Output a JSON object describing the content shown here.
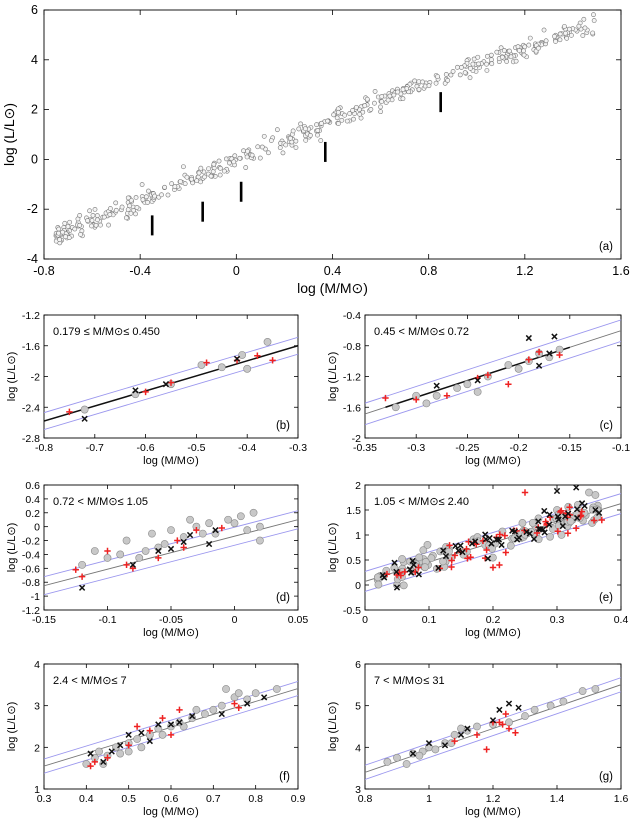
{
  "chart_data": [
    {
      "id": "a",
      "type": "scatter",
      "panel_label": "(a)",
      "xlabel": "log (M/M⊙)",
      "ylabel": "log (L/L⊙)",
      "xlim": [
        -0.8,
        1.6
      ],
      "ylim": [
        -4,
        6
      ],
      "xticks": [
        -0.8,
        -0.4,
        0,
        0.4,
        0.8,
        1.2,
        1.6
      ],
      "xtick_labels": [
        "-0.8",
        "-0.4",
        "0",
        "0.4",
        "0.8",
        "1.2",
        "1.6"
      ],
      "yticks": [
        -4,
        -2,
        0,
        2,
        4,
        6
      ],
      "ytick_labels": [
        "-4",
        "-2",
        "0",
        "2",
        "4",
        "6"
      ],
      "trend": {
        "slope": 4.0,
        "intercept": -0.05,
        "xmin": -0.75,
        "xmax": 1.5,
        "scatter": 0.35
      },
      "boundaries": [
        {
          "x": -0.35,
          "y": -2.65
        },
        {
          "x": -0.14,
          "y": -2.1
        },
        {
          "x": 0.02,
          "y": -1.3
        },
        {
          "x": 0.37,
          "y": 0.3
        },
        {
          "x": 0.85,
          "y": 2.3
        }
      ]
    },
    {
      "id": "b",
      "type": "scatter",
      "panel_label": "(b)",
      "range_text": "0.179 ≤  M/M⊙≤ 0.450",
      "xlabel": "log (M/M⊙)",
      "ylabel": "log (L/L⊙)",
      "xlim": [
        -0.8,
        -0.3
      ],
      "ylim": [
        -2.8,
        -1.2
      ],
      "xticks": [
        -0.8,
        -0.7,
        -0.6,
        -0.5,
        -0.4,
        -0.3
      ],
      "xtick_labels": [
        "-0.8",
        "-0.7",
        "-0.6",
        "-0.5",
        "-0.4",
        "-0.3"
      ],
      "yticks": [
        -2.8,
        -2.4,
        -2,
        -1.6,
        -1.2
      ],
      "ytick_labels": [
        "-2.8",
        "-2.4",
        "-2",
        "-1.6",
        "-1.2"
      ],
      "fit": {
        "x": [
          -0.8,
          -0.3
        ],
        "y": [
          -2.58,
          -1.6
        ]
      },
      "band": 0.11,
      "points": {
        "gray": [
          [
            -0.72,
            -2.43
          ],
          [
            -0.62,
            -2.23
          ],
          [
            -0.55,
            -2.1
          ],
          [
            -0.45,
            -1.88
          ],
          [
            -0.41,
            -1.72
          ],
          [
            -0.4,
            -1.9
          ],
          [
            -0.36,
            -1.55
          ],
          [
            -0.49,
            -1.85
          ]
        ],
        "red": [
          [
            -0.75,
            -2.46
          ],
          [
            -0.6,
            -2.2
          ],
          [
            -0.55,
            -2.08
          ],
          [
            -0.48,
            -1.82
          ],
          [
            -0.42,
            -1.79
          ],
          [
            -0.38,
            -1.73
          ],
          [
            -0.35,
            -1.79
          ]
        ],
        "black": [
          [
            -0.72,
            -2.55
          ],
          [
            -0.62,
            -2.18
          ],
          [
            -0.56,
            -2.1
          ],
          [
            -0.42,
            -1.77
          ]
        ]
      }
    },
    {
      "id": "c",
      "type": "scatter",
      "panel_label": "(c)",
      "range_text": "0.45 < M/M⊙≤ 0.72",
      "xlabel": "log (M/M⊙)",
      "ylabel": "log (L/L⊙)",
      "xlim": [
        -0.35,
        -0.1
      ],
      "ylim": [
        -2,
        -0.4
      ],
      "xticks": [
        -0.35,
        -0.3,
        -0.25,
        -0.2,
        -0.15,
        -0.1
      ],
      "xtick_labels": [
        "-0.35",
        "-0.3",
        "-0.25",
        "-0.2",
        "-0.15",
        "-0.1"
      ],
      "yticks": [
        -2,
        -1.6,
        -1.2,
        -0.8,
        -0.4
      ],
      "ytick_labels": [
        "-2",
        "-1.6",
        "-1.2",
        "-0.8",
        "-0.4"
      ],
      "fit": {
        "x": [
          -0.33,
          -0.15
        ],
        "y": [
          -1.6,
          -0.82
        ]
      },
      "band": 0.14,
      "points": {
        "gray": [
          [
            -0.32,
            -1.6
          ],
          [
            -0.3,
            -1.45
          ],
          [
            -0.28,
            -1.45
          ],
          [
            -0.26,
            -1.35
          ],
          [
            -0.25,
            -1.3
          ],
          [
            -0.23,
            -1.2
          ],
          [
            -0.2,
            -1.1
          ],
          [
            -0.19,
            -1.0
          ],
          [
            -0.17,
            -0.95
          ],
          [
            -0.16,
            -0.85
          ],
          [
            -0.24,
            -1.4
          ],
          [
            -0.29,
            -1.55
          ],
          [
            -0.21,
            -1.05
          ],
          [
            -0.18,
            -0.9
          ]
        ],
        "red": [
          [
            -0.33,
            -1.48
          ],
          [
            -0.3,
            -1.5
          ],
          [
            -0.27,
            -1.45
          ],
          [
            -0.24,
            -1.22
          ],
          [
            -0.23,
            -1.18
          ],
          [
            -0.21,
            -1.3
          ],
          [
            -0.19,
            -0.98
          ],
          [
            -0.18,
            -0.88
          ],
          [
            -0.16,
            -0.92
          ]
        ],
        "black": [
          [
            -0.28,
            -1.32
          ],
          [
            -0.24,
            -1.25
          ],
          [
            -0.19,
            -0.7
          ],
          [
            -0.18,
            -1.06
          ],
          [
            -0.165,
            -0.68
          ],
          [
            -0.17,
            -0.9
          ]
        ]
      }
    },
    {
      "id": "d",
      "type": "scatter",
      "panel_label": "(d)",
      "range_text": "0.72 < M/M⊙≤ 1.05",
      "xlabel": "log (M/M⊙)",
      "ylabel": "log (L/L⊙)",
      "xlim": [
        -0.15,
        0.05
      ],
      "ylim": [
        -1.2,
        0.6
      ],
      "xticks": [
        -0.15,
        -0.1,
        -0.05,
        0,
        0.05
      ],
      "xtick_labels": [
        "-0.15",
        "-0.1",
        "-0.05",
        "0",
        "0.05"
      ],
      "yticks": [
        -1.2,
        -1,
        -0.8,
        -0.6,
        -0.4,
        -0.2,
        0,
        0.2,
        0.4,
        0.6
      ],
      "ytick_labels": [
        "-1.2",
        "-1",
        "-0.8",
        "-0.6",
        "-0.4",
        "-0.2",
        "0",
        "0.2",
        "0.4",
        "0.6"
      ],
      "fit": {
        "x": [
          -0.15,
          0.05
        ],
        "y": [
          -0.85,
          0.1
        ]
      },
      "band": 0.13,
      "points": {
        "gray": [
          [
            -0.12,
            -0.55
          ],
          [
            -0.1,
            -0.45
          ],
          [
            -0.09,
            -0.4
          ],
          [
            -0.085,
            -0.2
          ],
          [
            -0.07,
            -0.35
          ],
          [
            -0.065,
            -0.1
          ],
          [
            -0.055,
            -0.25
          ],
          [
            -0.05,
            -0.05
          ],
          [
            -0.04,
            -0.15
          ],
          [
            -0.035,
            0.1
          ],
          [
            -0.02,
            0.05
          ],
          [
            -0.015,
            -0.1
          ],
          [
            -0.005,
            0.1
          ],
          [
            0.005,
            0.15
          ],
          [
            0.01,
            -0.05
          ],
          [
            0.02,
            0.0
          ],
          [
            -0.11,
            -0.35
          ],
          [
            -0.075,
            -0.45
          ],
          [
            -0.03,
            0.0
          ],
          [
            0.015,
            0.2
          ],
          [
            0.02,
            -0.2
          ],
          [
            -0.06,
            -0.3
          ],
          [
            0.0,
            0.05
          ],
          [
            -0.025,
            -0.1
          ]
        ],
        "red": [
          [
            -0.125,
            -0.62
          ],
          [
            -0.12,
            -0.72
          ],
          [
            -0.1,
            -0.35
          ],
          [
            -0.08,
            -0.6
          ],
          [
            -0.06,
            -0.45
          ],
          [
            -0.04,
            -0.3
          ],
          [
            -0.03,
            -0.05
          ],
          [
            -0.01,
            -0.02
          ],
          [
            -0.045,
            -0.2
          ],
          [
            -0.085,
            -0.55
          ]
        ],
        "black": [
          [
            -0.12,
            -0.88
          ],
          [
            -0.08,
            -0.55
          ],
          [
            -0.06,
            -0.35
          ],
          [
            -0.05,
            -0.32
          ],
          [
            -0.04,
            -0.22
          ],
          [
            -0.035,
            -0.12
          ],
          [
            -0.02,
            -0.25
          ],
          [
            -0.015,
            -0.05
          ]
        ]
      }
    },
    {
      "id": "e",
      "type": "scatter",
      "panel_label": "(e)",
      "range_text": "1.05 < M/M⊙≤ 2.40",
      "xlabel": "log (M/M⊙)",
      "ylabel": "log (L/L⊙)",
      "xlim": [
        0,
        0.4
      ],
      "ylim": [
        -0.5,
        2
      ],
      "xticks": [
        0,
        0.1,
        0.2,
        0.3,
        0.4
      ],
      "xtick_labels": [
        "0",
        "0.1",
        "0.2",
        "0.3",
        "0.4"
      ],
      "yticks": [
        -0.5,
        0,
        0.5,
        1,
        1.5,
        2
      ],
      "ytick_labels": [
        "-0.5",
        "0",
        "0.5",
        "1",
        "1.5",
        "2"
      ],
      "fit": {
        "x": [
          0.02,
          0.38
        ],
        "y": [
          0.15,
          1.55
        ]
      },
      "band": 0.2,
      "cloud": {
        "gray": 110,
        "red": 45,
        "black": 50,
        "xmin": 0.02,
        "xmax": 0.37,
        "scatter": 0.22
      },
      "points": {
        "gray": [
          [
            0.35,
            1.85
          ],
          [
            0.36,
            1.8
          ],
          [
            0.02,
            0.1
          ],
          [
            0.05,
            0.0
          ],
          [
            0.3,
            1.5
          ]
        ],
        "red": [
          [
            0.2,
            0.35
          ],
          [
            0.21,
            0.4
          ],
          [
            0.22,
            0.65
          ],
          [
            0.19,
            0.7
          ],
          [
            0.25,
            1.85
          ],
          [
            0.05,
            0.2
          ],
          [
            0.37,
            1.3
          ]
        ],
        "black": [
          [
            0.33,
            1.95
          ],
          [
            0.3,
            1.88
          ],
          [
            0.05,
            -0.05
          ],
          [
            0.03,
            0.15
          ],
          [
            0.36,
            1.5
          ]
        ]
      }
    },
    {
      "id": "f",
      "type": "scatter",
      "panel_label": "(f)",
      "range_text": "2.4 < M/M⊙≤ 7",
      "xlabel": "log (M/M⊙)",
      "ylabel": "log (L/L⊙)",
      "xlim": [
        0.3,
        0.9
      ],
      "ylim": [
        1,
        4
      ],
      "xticks": [
        0.3,
        0.4,
        0.5,
        0.6,
        0.7,
        0.8,
        0.9
      ],
      "xtick_labels": [
        "0.3",
        "0.4",
        "0.5",
        "0.6",
        "0.7",
        "0.8",
        "0.9"
      ],
      "yticks": [
        1,
        2,
        3,
        4
      ],
      "ytick_labels": [
        "1",
        "2",
        "3",
        "4"
      ],
      "fit": {
        "x": [
          0.3,
          0.88
        ],
        "y": [
          1.55,
          3.35
        ]
      },
      "band": 0.17,
      "points": {
        "gray": [
          [
            0.4,
            1.6
          ],
          [
            0.42,
            1.75
          ],
          [
            0.43,
            1.9
          ],
          [
            0.45,
            1.8
          ],
          [
            0.47,
            2.0
          ],
          [
            0.48,
            1.85
          ],
          [
            0.5,
            2.1
          ],
          [
            0.52,
            2.2
          ],
          [
            0.55,
            2.3
          ],
          [
            0.57,
            2.45
          ],
          [
            0.6,
            2.5
          ],
          [
            0.62,
            2.6
          ],
          [
            0.65,
            2.7
          ],
          [
            0.68,
            2.8
          ],
          [
            0.7,
            2.9
          ],
          [
            0.72,
            3.0
          ],
          [
            0.75,
            3.2
          ],
          [
            0.78,
            3.15
          ],
          [
            0.8,
            3.3
          ],
          [
            0.85,
            3.4
          ],
          [
            0.53,
            2.0
          ],
          [
            0.58,
            2.3
          ],
          [
            0.63,
            2.5
          ],
          [
            0.73,
            3.4
          ],
          [
            0.44,
            1.6
          ],
          [
            0.66,
            2.9
          ],
          [
            0.76,
            3.3
          ],
          [
            0.5,
            1.9
          ]
        ],
        "red": [
          [
            0.41,
            1.55
          ],
          [
            0.42,
            1.65
          ],
          [
            0.45,
            1.75
          ],
          [
            0.5,
            2.05
          ],
          [
            0.55,
            2.4
          ],
          [
            0.58,
            2.7
          ],
          [
            0.6,
            2.3
          ],
          [
            0.62,
            2.9
          ],
          [
            0.75,
            3.05
          ],
          [
            0.76,
            2.95
          ],
          [
            0.52,
            2.5
          ]
        ],
        "black": [
          [
            0.41,
            1.85
          ],
          [
            0.46,
            1.9
          ],
          [
            0.48,
            2.05
          ],
          [
            0.5,
            2.3
          ],
          [
            0.55,
            2.15
          ],
          [
            0.57,
            2.55
          ],
          [
            0.6,
            2.55
          ],
          [
            0.62,
            2.6
          ],
          [
            0.65,
            2.75
          ],
          [
            0.72,
            2.8
          ],
          [
            0.78,
            3.05
          ],
          [
            0.82,
            3.2
          ],
          [
            0.44,
            1.65
          ],
          [
            0.53,
            2.35
          ]
        ]
      }
    },
    {
      "id": "g",
      "type": "scatter",
      "panel_label": "(g)",
      "range_text": "7 < M/M⊙≤ 31",
      "xlabel": "log (M/M⊙)",
      "ylabel": "log (L/L⊙)",
      "xlim": [
        0.8,
        1.6
      ],
      "ylim": [
        3,
        6
      ],
      "xticks": [
        0.8,
        1,
        1.2,
        1.4,
        1.6
      ],
      "xtick_labels": [
        "0.8",
        "1",
        "1.2",
        "1.4",
        "1.6"
      ],
      "yticks": [
        3,
        4,
        5,
        6
      ],
      "ytick_labels": [
        "3",
        "4",
        "5",
        "6"
      ],
      "fit": {
        "x": [
          0.8,
          1.58
        ],
        "y": [
          3.4,
          5.45
        ]
      },
      "band": 0.17,
      "points": {
        "gray": [
          [
            0.87,
            3.65
          ],
          [
            0.9,
            3.75
          ],
          [
            0.93,
            3.6
          ],
          [
            0.95,
            3.85
          ],
          [
            0.98,
            3.9
          ],
          [
            1.0,
            4.0
          ],
          [
            1.02,
            3.95
          ],
          [
            1.05,
            4.1
          ],
          [
            1.08,
            4.3
          ],
          [
            1.1,
            4.45
          ],
          [
            1.15,
            4.5
          ],
          [
            1.2,
            4.55
          ],
          [
            1.25,
            4.6
          ],
          [
            1.3,
            4.75
          ],
          [
            1.33,
            4.9
          ],
          [
            1.38,
            5.0
          ],
          [
            1.42,
            5.1
          ],
          [
            1.48,
            5.35
          ],
          [
            1.52,
            5.4
          ],
          [
            1.07,
            4.1
          ],
          [
            1.12,
            4.4
          ],
          [
            0.97,
            3.8
          ]
        ],
        "red": [
          [
            1.08,
            4.15
          ],
          [
            1.15,
            4.3
          ],
          [
            1.2,
            4.6
          ],
          [
            1.22,
            4.6
          ],
          [
            1.25,
            4.45
          ],
          [
            1.27,
            4.35
          ],
          [
            1.23,
            4.55
          ],
          [
            1.18,
            3.95
          ],
          [
            1.24,
            4.8
          ]
        ],
        "black": [
          [
            0.95,
            3.85
          ],
          [
            1.0,
            4.1
          ],
          [
            1.1,
            4.3
          ],
          [
            1.12,
            4.45
          ],
          [
            1.2,
            4.65
          ],
          [
            1.22,
            4.9
          ],
          [
            1.25,
            5.05
          ],
          [
            1.05,
            4.05
          ],
          [
            1.28,
            4.95
          ]
        ]
      }
    }
  ]
}
